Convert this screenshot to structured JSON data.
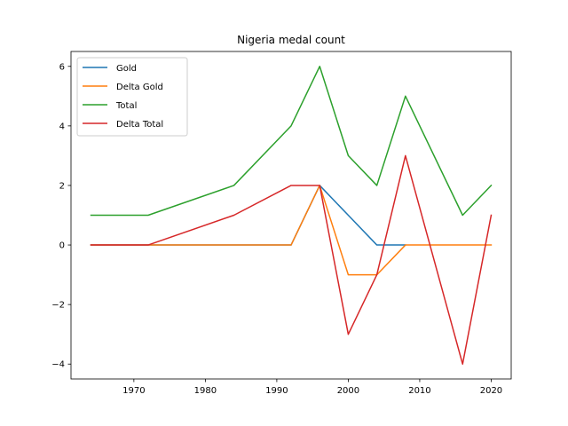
{
  "chart_data": {
    "type": "line",
    "title": "Nigeria medal count",
    "xlabel": "",
    "ylabel": "",
    "x": [
      1964,
      1972,
      1984,
      1992,
      1996,
      2000,
      2004,
      2008,
      2016,
      2020
    ],
    "xlim": [
      1961.2,
      2022.8
    ],
    "ylim": [
      -4.5,
      6.5
    ],
    "xticks": [
      1970,
      1980,
      1990,
      2000,
      2010,
      2020
    ],
    "yticks": [
      -4,
      -2,
      0,
      2,
      4,
      6
    ],
    "ytick_labels": [
      "−4",
      "−2",
      "0",
      "2",
      "4",
      "6"
    ],
    "grid": false,
    "legend_position": "top-left",
    "series": [
      {
        "name": "Gold",
        "color": "#1f77b4",
        "x": [
          1964,
          1972,
          1984,
          1992,
          1996,
          2000,
          2004,
          2008
        ],
        "values": [
          0,
          0,
          0,
          0,
          2,
          1,
          0,
          0
        ]
      },
      {
        "name": "Delta Gold",
        "color": "#ff7f0e",
        "x": [
          1964,
          1972,
          1984,
          1992,
          1996,
          2000,
          2004,
          2008,
          2016,
          2020
        ],
        "values": [
          0,
          0,
          0,
          0,
          2,
          -1,
          -1,
          0,
          0,
          0
        ]
      },
      {
        "name": "Total",
        "color": "#2ca02c",
        "x": [
          1964,
          1972,
          1984,
          1992,
          1996,
          2000,
          2004,
          2008,
          2016,
          2020
        ],
        "values": [
          1,
          1,
          2,
          4,
          6,
          3,
          2,
          5,
          1,
          2
        ]
      },
      {
        "name": "Delta Total",
        "color": "#d62728",
        "x": [
          1964,
          1972,
          1984,
          1992,
          1996,
          2000,
          2004,
          2008,
          2016,
          2020
        ],
        "values": [
          0,
          0,
          1,
          2,
          2,
          -3,
          -1,
          3,
          -4,
          1
        ]
      }
    ]
  }
}
